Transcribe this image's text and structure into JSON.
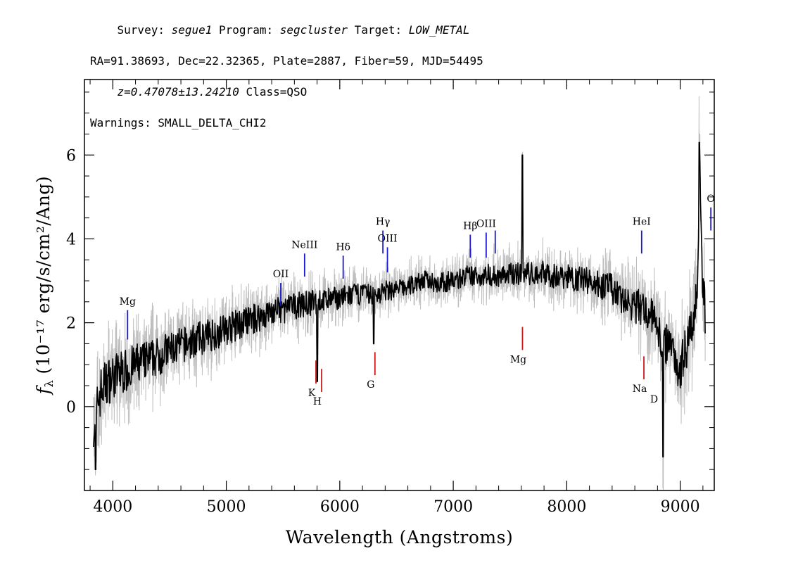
{
  "header": {
    "line1": [
      {
        "text": "Survey: ",
        "italic": false
      },
      {
        "text": "segue1",
        "italic": true
      },
      {
        "text": " Program: ",
        "italic": false
      },
      {
        "text": "segcluster",
        "italic": true
      },
      {
        "text": " Target: ",
        "italic": false
      },
      {
        "text": "LOW_METAL",
        "italic": true
      }
    ],
    "line2": "RA=91.38693, Dec=22.32365, Plate=2887, Fiber=59, MJD=54495",
    "line3": [
      {
        "text": "z=0.47078±13.24210",
        "italic": true
      },
      {
        "text": " Class=QSO",
        "italic": false
      }
    ],
    "line4": "Warnings: SMALL_DELTA_CHI2"
  },
  "chart_data": {
    "type": "line",
    "title": "",
    "xlabel": "Wavelength (Angstroms)",
    "ylabel": "(10⁻¹⁷ erg/s/cm²/Ang)",
    "ylabel_symbol": "f",
    "ylabel_subscript": "λ",
    "xlim": [
      3750,
      9300
    ],
    "ylim": [
      -2,
      7.8
    ],
    "x_ticks": [
      4000,
      5000,
      6000,
      7000,
      8000,
      9000
    ],
    "y_ticks": [
      0,
      2,
      4,
      6
    ],
    "grid": false,
    "colors": {
      "flux": "#000000",
      "error_band": "#bdbdbd",
      "emission_marker": "#1a1acc",
      "absorption_marker": "#cc1a1a"
    },
    "series": [
      {
        "name": "flux",
        "x": [
          3830,
          3850,
          3870,
          3900,
          3950,
          4000,
          4050,
          4100,
          4150,
          4200,
          4250,
          4300,
          4400,
          4500,
          4600,
          4700,
          4800,
          4900,
          5000,
          5100,
          5200,
          5300,
          5400,
          5500,
          5600,
          5700,
          5800,
          5900,
          6000,
          6100,
          6200,
          6300,
          6400,
          6500,
          6600,
          6700,
          6800,
          6900,
          7000,
          7100,
          7200,
          7300,
          7400,
          7500,
          7600,
          7700,
          7800,
          7900,
          8000,
          8100,
          8200,
          8300,
          8400,
          8500,
          8600,
          8700,
          8800,
          8850,
          8900,
          8950,
          9000,
          9050,
          9100,
          9150,
          9170,
          9200,
          9220
        ],
        "y": [
          -0.3,
          -0.6,
          0.2,
          0.4,
          0.6,
          0.7,
          0.8,
          0.85,
          0.9,
          1.0,
          1.05,
          1.1,
          1.2,
          1.35,
          1.45,
          1.55,
          1.65,
          1.75,
          1.85,
          1.95,
          2.05,
          2.15,
          2.25,
          2.3,
          2.4,
          2.45,
          2.5,
          2.55,
          2.6,
          2.65,
          2.7,
          2.65,
          2.75,
          2.8,
          2.85,
          3.0,
          3.0,
          2.95,
          3.0,
          3.1,
          3.1,
          3.15,
          3.1,
          3.15,
          3.2,
          3.15,
          3.2,
          3.1,
          3.1,
          3.05,
          3.0,
          2.9,
          2.8,
          2.5,
          2.4,
          2.3,
          2.0,
          1.3,
          1.7,
          1.2,
          0.9,
          1.4,
          1.9,
          2.6,
          6.0,
          2.8,
          2.4
        ],
        "spikes": [
          {
            "x": 3850,
            "y": -1.5
          },
          {
            "x": 5800,
            "y": 0.6
          },
          {
            "x": 6300,
            "y": 1.5
          },
          {
            "x": 7610,
            "y": 6.0
          },
          {
            "x": 8850,
            "y": -1.2
          },
          {
            "x": 9170,
            "y": 6.3
          }
        ]
      },
      {
        "name": "error",
        "x": [
          3830,
          4000,
          4500,
          5000,
          5500,
          6000,
          6500,
          7000,
          7500,
          8000,
          8500,
          9000,
          9220
        ],
        "halfwidth": [
          1.2,
          1.0,
          0.8,
          0.7,
          0.6,
          0.5,
          0.45,
          0.45,
          0.5,
          0.55,
          0.7,
          1.0,
          1.2
        ]
      }
    ],
    "emission_lines": [
      {
        "label": "Mg",
        "x": 4130,
        "y0": 1.6,
        "y1": 2.3
      },
      {
        "label": "OII",
        "x": 5480,
        "y0": 2.4,
        "y1": 2.95
      },
      {
        "label": "NeIII",
        "x": 5690,
        "y0": 3.1,
        "y1": 3.65
      },
      {
        "label": "Hδ",
        "x": 6030,
        "y0": 3.05,
        "y1": 3.6
      },
      {
        "label": "Hγ",
        "x": 6380,
        "y0": 3.65,
        "y1": 4.2
      },
      {
        "label": "OIII",
        "x": 6420,
        "y0": 3.2,
        "y1": 3.8
      },
      {
        "label": "Hβ",
        "x": 7150,
        "y0": 3.55,
        "y1": 4.1
      },
      {
        "label": "OIII",
        "x": 7290,
        "y0": 3.55,
        "y1": 4.15
      },
      {
        "label": "",
        "x": 7370,
        "y0": 3.65,
        "y1": 4.2
      },
      {
        "label": "HeI",
        "x": 8660,
        "y0": 3.65,
        "y1": 4.2
      },
      {
        "label": "O",
        "x": 9270,
        "y0": 4.2,
        "y1": 4.75
      }
    ],
    "absorption_lines": [
      {
        "label": "K",
        "x": 5790,
        "y0": 0.55,
        "y1": 1.1
      },
      {
        "label": "H",
        "x": 5840,
        "y0": 0.35,
        "y1": 0.9
      },
      {
        "label": "G",
        "x": 6310,
        "y0": 0.75,
        "y1": 1.3
      },
      {
        "label": "Mg",
        "x": 7610,
        "y0": 1.35,
        "y1": 1.9
      },
      {
        "label": "Na",
        "x": 8680,
        "y0": 0.65,
        "y1": 1.2
      }
    ],
    "absorption_extra_labels": [
      {
        "label": "D",
        "x": 8770,
        "y": 0.4
      }
    ]
  }
}
